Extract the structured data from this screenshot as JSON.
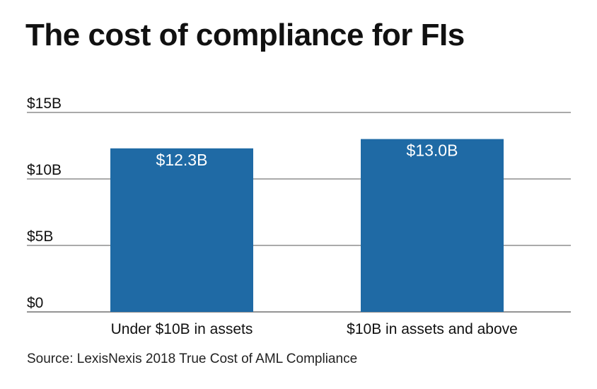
{
  "title": "The cost of compliance for FIs",
  "source": "Source: LexisNexis 2018 True Cost of AML Compliance",
  "colors": {
    "bar": "#1f6aa5",
    "grid": "#555555",
    "label_inside": "#ffffff"
  },
  "chart_data": {
    "type": "bar",
    "title": "The cost of compliance for FIs",
    "categories": [
      "Under $10B in assets",
      "$10B in assets and above"
    ],
    "values": [
      12.3,
      13.0
    ],
    "data_labels": [
      "$12.3B",
      "$13.0B"
    ],
    "yticks": [
      0,
      5,
      10,
      15
    ],
    "ytick_labels": [
      "$0",
      "$5B",
      "$10B",
      "$15B"
    ],
    "ylim": [
      0,
      15
    ],
    "xlabel": "",
    "ylabel": "",
    "grid": true,
    "legend": "none"
  }
}
